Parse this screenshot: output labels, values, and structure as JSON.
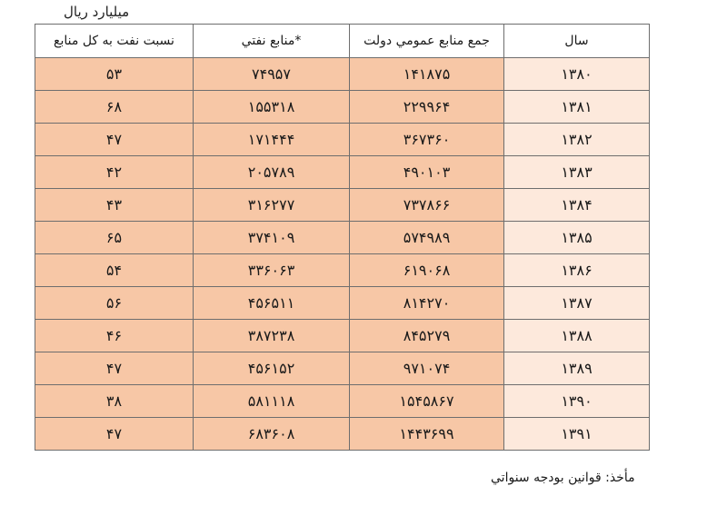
{
  "unit_label": "میلیارد ریال",
  "headers": {
    "year": "سال",
    "total": "جمع منابع عمومي دولت",
    "oil": "*منابع نفتي",
    "ratio": "نسبت نفت به کل منابع"
  },
  "rows": [
    {
      "year": "۱۳۸۰",
      "total": "۱۴۱۸۷۵",
      "oil": "۷۴۹۵۷",
      "ratio": "۵۳"
    },
    {
      "year": "۱۳۸۱",
      "total": "۲۲۹۹۶۴",
      "oil": "۱۵۵۳۱۸",
      "ratio": "۶۸"
    },
    {
      "year": "۱۳۸۲",
      "total": "۳۶۷۳۶۰",
      "oil": "۱۷۱۴۴۴",
      "ratio": "۴۷"
    },
    {
      "year": "۱۳۸۳",
      "total": "۴۹۰۱۰۳",
      "oil": "۲۰۵۷۸۹",
      "ratio": "۴۲"
    },
    {
      "year": "۱۳۸۴",
      "total": "۷۳۷۸۶۶",
      "oil": "۳۱۶۲۷۷",
      "ratio": "۴۳"
    },
    {
      "year": "۱۳۸۵",
      "total": "۵۷۴۹۸۹",
      "oil": "۳۷۴۱۰۹",
      "ratio": "۶۵"
    },
    {
      "year": "۱۳۸۶",
      "total": "۶۱۹۰۶۸",
      "oil": "۳۳۶۰۶۳",
      "ratio": "۵۴"
    },
    {
      "year": "۱۳۸۷",
      "total": "۸۱۴۲۷۰",
      "oil": "۴۵۶۵۱۱",
      "ratio": "۵۶"
    },
    {
      "year": "۱۳۸۸",
      "total": "۸۴۵۲۷۹",
      "oil": "۳۸۷۲۳۸",
      "ratio": "۴۶"
    },
    {
      "year": "۱۳۸۹",
      "total": "۹۷۱۰۷۴",
      "oil": "۴۵۶۱۵۲",
      "ratio": "۴۷"
    },
    {
      "year": "۱۳۹۰",
      "total": "۱۵۴۵۸۶۷",
      "oil": "۵۸۱۱۱۸",
      "ratio": "۳۸"
    },
    {
      "year": "۱۳۹۱",
      "total": "۱۴۴۳۶۹۹",
      "oil": "۶۸۳۶۰۸",
      "ratio": "۴۷"
    }
  ],
  "source_label": "مأخذ: قوانین بودجه سنواتي",
  "colors": {
    "year_cell_bg": "#fde9dc",
    "value_cell_bg": "#f7c7a6",
    "border": "#6e6e6e"
  }
}
